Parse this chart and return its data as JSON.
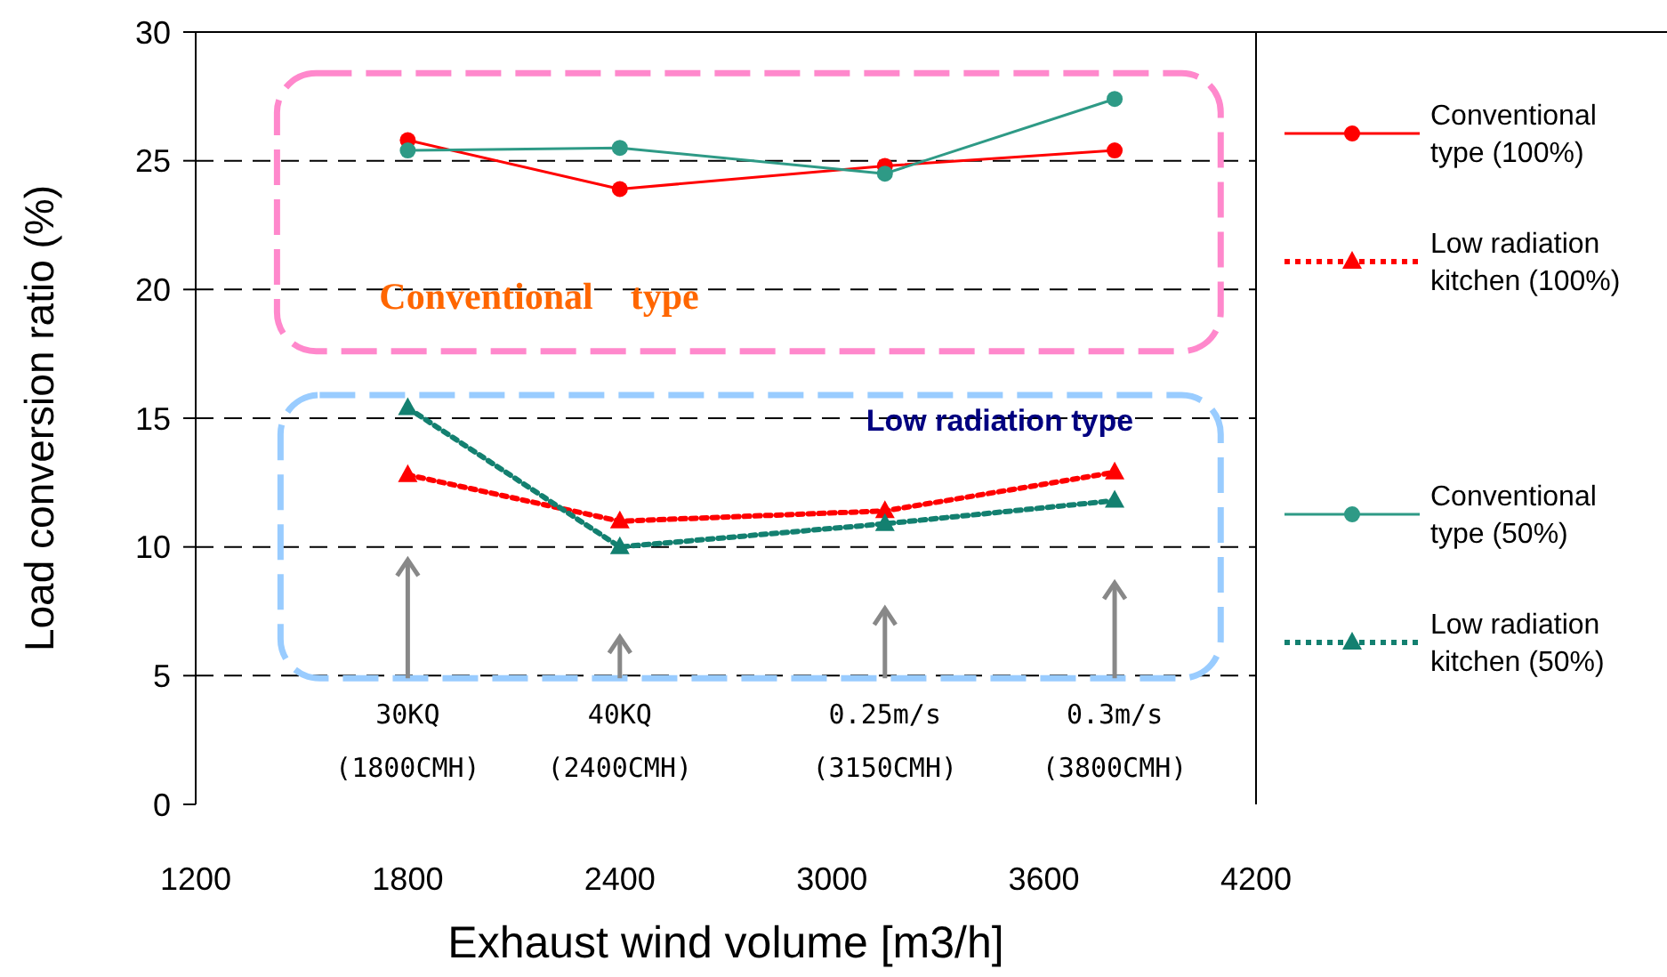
{
  "chart_data": {
    "type": "line",
    "xlabel": "Exhaust wind volume [m3/h]",
    "ylabel": "Load conversion ratio (%)",
    "x": [
      1800,
      2400,
      3150,
      3800
    ],
    "xlim": [
      1200,
      4200
    ],
    "xticks": [
      1200,
      1800,
      2400,
      3000,
      3600,
      4200
    ],
    "ylim": [
      0,
      30
    ],
    "yticks": [
      0,
      5,
      10,
      15,
      20,
      25,
      30
    ],
    "grid": "y",
    "legend": "right",
    "series": [
      {
        "name": "Conventional type (100%)",
        "color": "#ff0000",
        "marker": "circle",
        "line_style": "solid",
        "values": [
          25.8,
          23.9,
          24.8,
          25.4
        ]
      },
      {
        "name": "Low radiation kitchen (100%)",
        "color": "#ff0000",
        "marker": "triangle",
        "line_style": "dotted",
        "values": [
          12.8,
          11.0,
          11.4,
          12.9
        ]
      },
      {
        "name": "Conventional type (50%)",
        "color": "#2e9a86",
        "marker": "circle",
        "line_style": "solid",
        "values": [
          25.4,
          25.5,
          24.5,
          27.4
        ]
      },
      {
        "name": "Low radiation kitchen (50%)",
        "color": "#138070",
        "marker": "triangle",
        "line_style": "dotted",
        "values": [
          15.4,
          10.0,
          10.9,
          11.8
        ]
      }
    ],
    "annotations": [
      "Conventional　type",
      "Low radiation type",
      "30KQ",
      "(1800CMH)",
      "40KQ",
      "(2400CMH)",
      "0.25m/s",
      "(3150CMH)",
      "0.3m/s",
      "(3800CMH)"
    ]
  }
}
